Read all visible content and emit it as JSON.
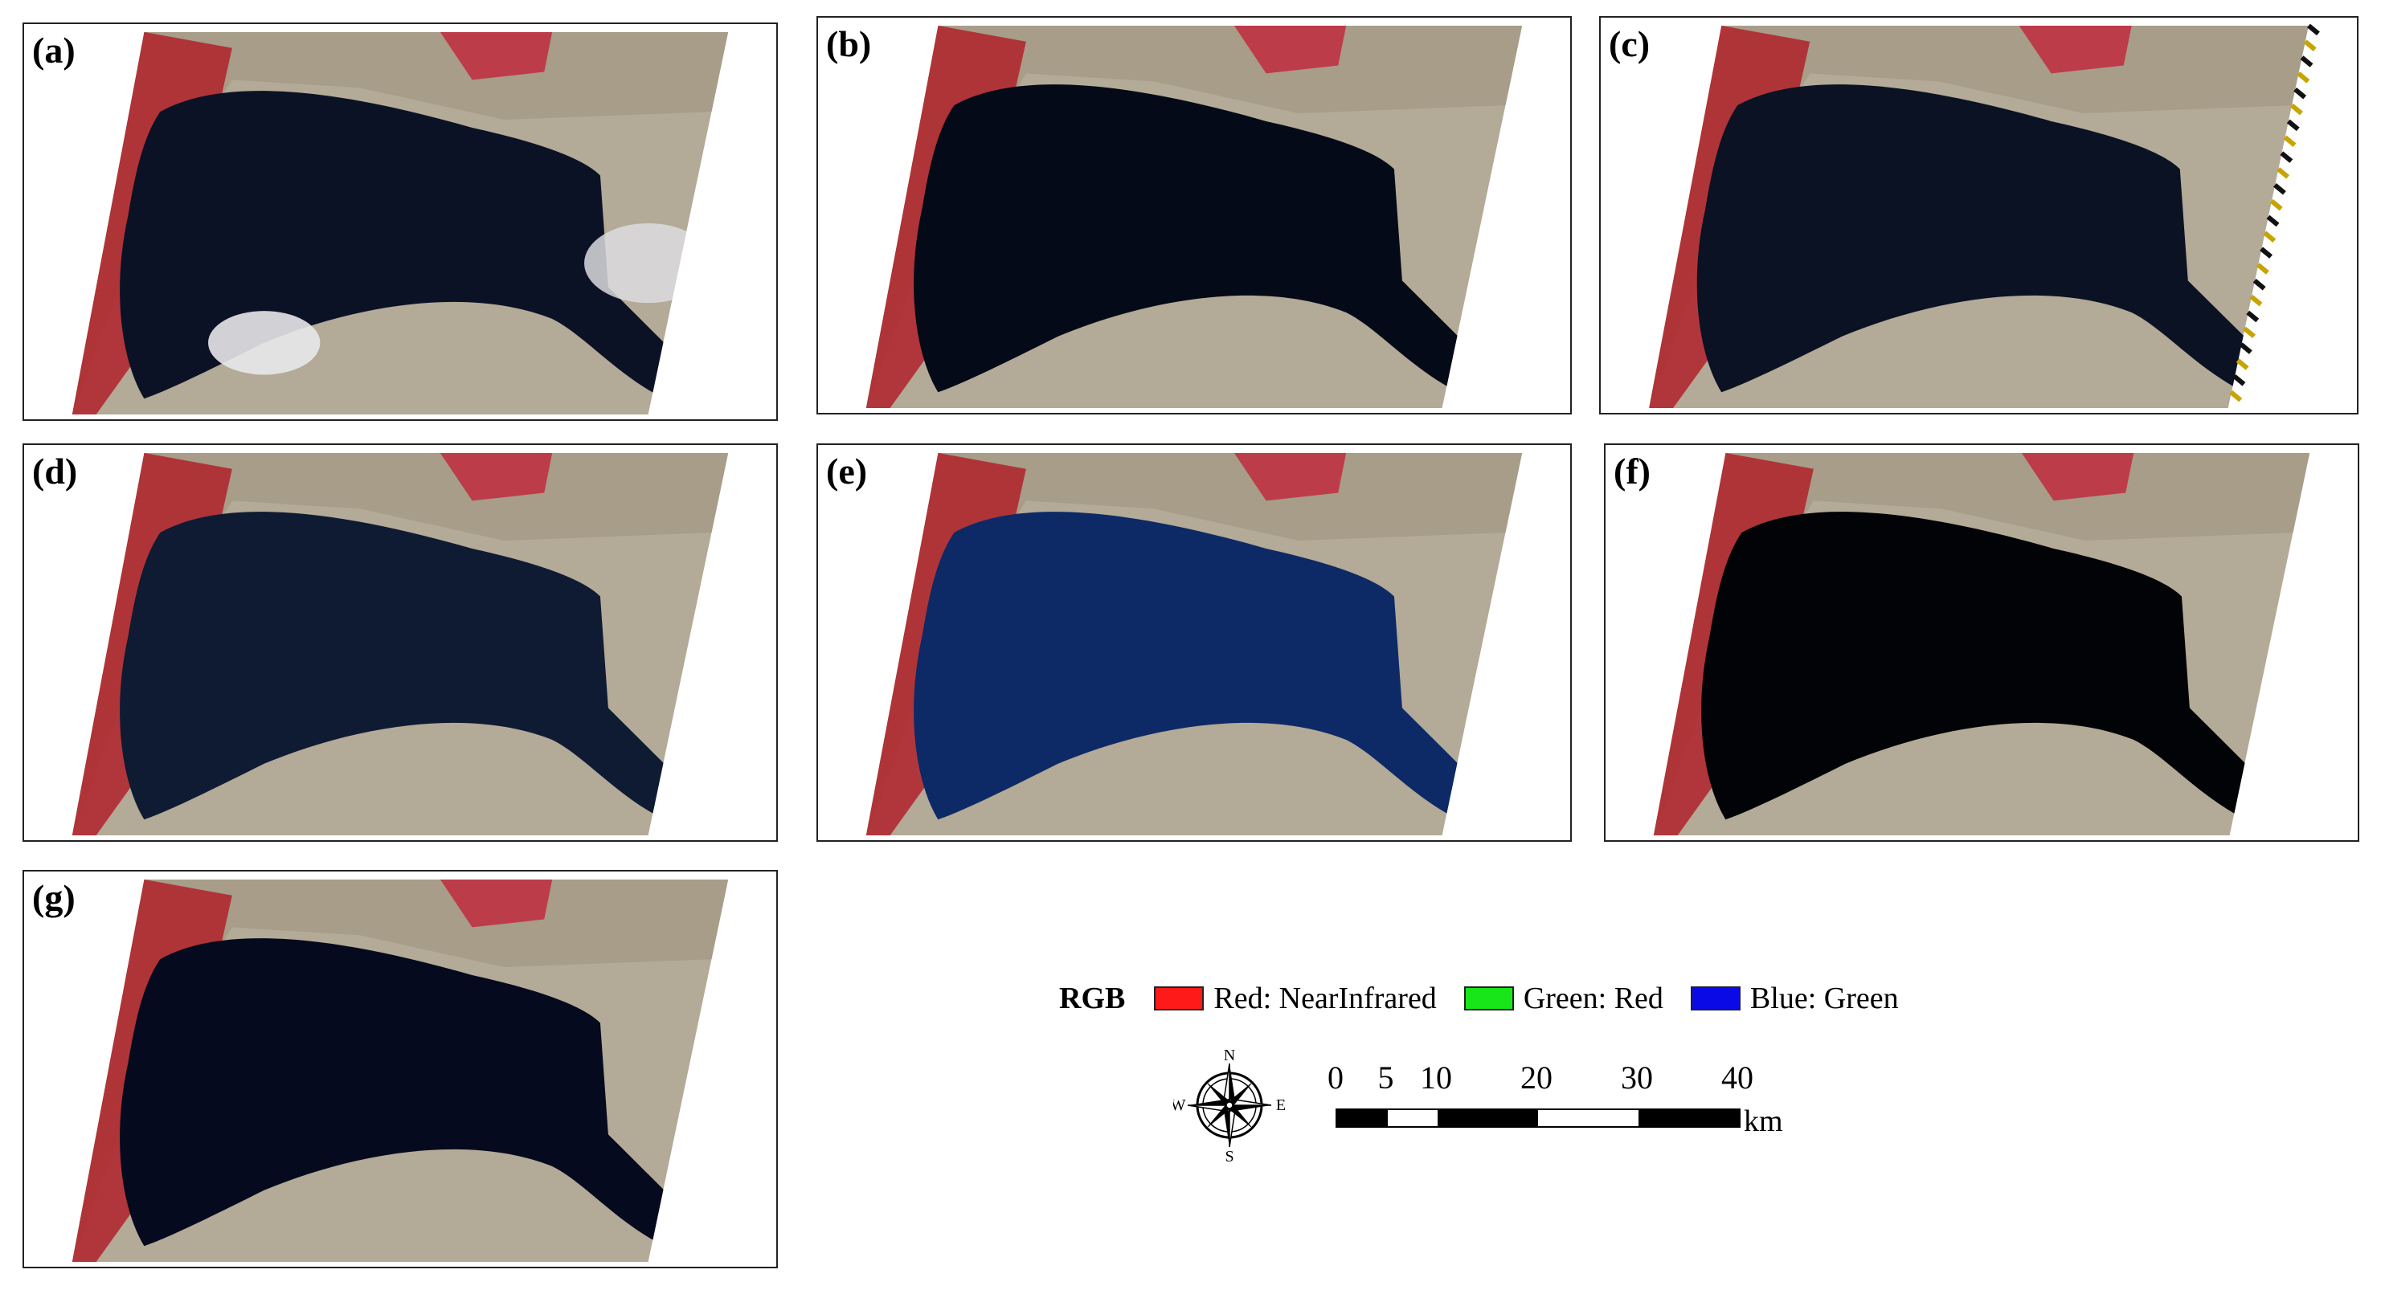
{
  "panels": [
    {
      "label": "(a)",
      "water": "#0c1226",
      "cloud": true
    },
    {
      "label": "(b)",
      "water": "#050a18",
      "cloud": false
    },
    {
      "label": "(c)",
      "water": "#0a1224",
      "cloud": false,
      "striped_edge": true
    },
    {
      "label": "(d)",
      "water": "#0f1b33",
      "cloud": false
    },
    {
      "label": "(e)",
      "water": "#0d2a66",
      "cloud": false
    },
    {
      "label": "(f)",
      "water": "#020306",
      "cloud": false
    },
    {
      "label": "(g)",
      "water": "#060a1e",
      "cloud": false
    }
  ],
  "legend": {
    "title": "RGB",
    "items": [
      {
        "label": "Red: NearInfrared",
        "color": "#ff1a1a"
      },
      {
        "label": "Green: Red",
        "color": "#19e619"
      },
      {
        "label": "Blue: Green",
        "color": "#0a0ae6"
      }
    ]
  },
  "compass": {
    "n": "N",
    "s": "S",
    "e": "E",
    "w": "W"
  },
  "scale": {
    "ticks": [
      "0",
      "5",
      "10",
      "20",
      "30",
      "40"
    ],
    "tick_values": [
      0,
      5,
      10,
      20,
      30,
      40
    ],
    "unit": "km"
  }
}
